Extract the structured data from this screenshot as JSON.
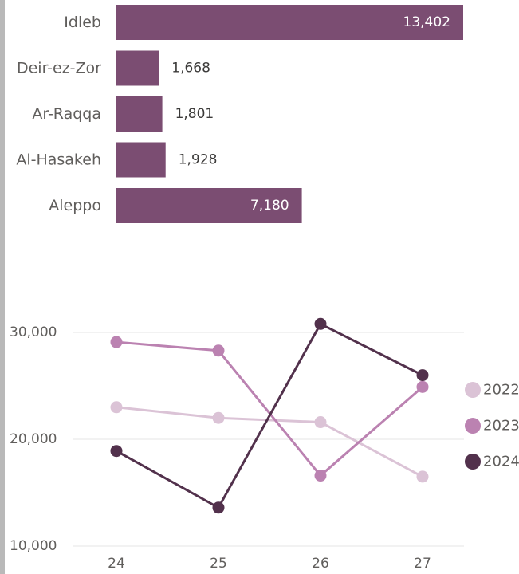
{
  "chart_data": [
    {
      "type": "bar",
      "orientation": "horizontal",
      "categories": [
        "Idleb",
        "Deir-ez-Zor",
        "Ar-Raqqa",
        "Al-Hasakeh",
        "Aleppo"
      ],
      "values": [
        13402,
        1668,
        1801,
        1928,
        7180
      ],
      "value_labels": [
        "13,402",
        "1,668",
        "1,801",
        "1,928",
        "7,180"
      ],
      "color": "#7b4d72",
      "grid": false
    },
    {
      "type": "line",
      "x": [
        "24",
        "25",
        "26",
        "27"
      ],
      "ylim": [
        10000,
        30000
      ],
      "yticks": [
        "10,000",
        "20,000",
        "30,000"
      ],
      "grid": true,
      "legend_position": "right",
      "series": [
        {
          "name": "2022",
          "values": [
            23000,
            22000,
            21600,
            16500
          ],
          "color": "#dbc3d6"
        },
        {
          "name": "2023",
          "values": [
            29100,
            28300,
            16600,
            24900
          ],
          "color": "#bb82b1"
        },
        {
          "name": "2024",
          "values": [
            18900,
            13600,
            30800,
            26000
          ],
          "color": "#52314c"
        }
      ]
    }
  ]
}
